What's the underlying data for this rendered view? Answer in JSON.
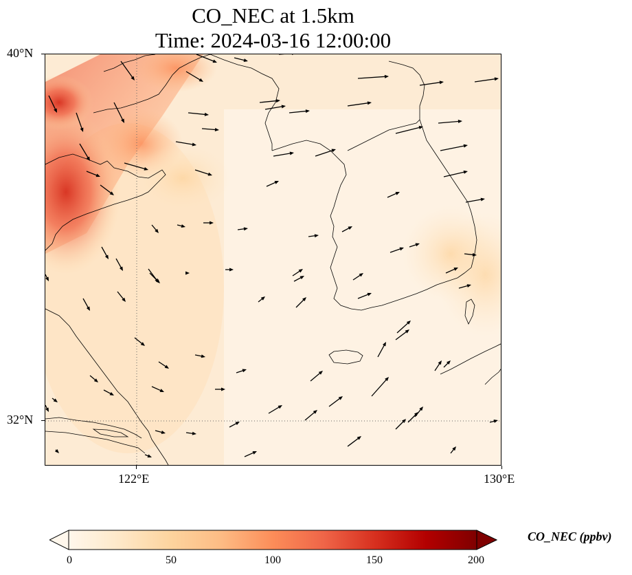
{
  "title": {
    "line1": "CO_NEC at 1.5km",
    "line2": "Time: 2024-03-16 12:00:00"
  },
  "map": {
    "projection": "PlateCarree",
    "lon_range": [
      120,
      130
    ],
    "lat_range": [
      31,
      40
    ],
    "lat_ticks": [
      {
        "value": 40,
        "label": "40°N"
      },
      {
        "value": 32,
        "label": "32°N"
      }
    ],
    "lon_ticks": [
      {
        "value": 122,
        "label": "122°E"
      },
      {
        "value": 130,
        "label": "130°E"
      }
    ],
    "gridlines": "dotted gray at 122°E and 32°N",
    "features": [
      "coastlines",
      "country borders"
    ],
    "field": "CO_NEC concentration (shaded, ppbv)",
    "overlay": "wind vectors (black arrows)"
  },
  "colorbar": {
    "label": "CO_NEC (ppbv)",
    "min": 0,
    "max": 200,
    "extend": "both",
    "colormap": "OrRd",
    "ticks": [
      "0",
      "50",
      "100",
      "150",
      "200"
    ],
    "colors": [
      "#fff7ec",
      "#fee8c8",
      "#fdd49e",
      "#fdbb84",
      "#fc8d59",
      "#ef6548",
      "#d7301f",
      "#b30000",
      "#7f0000"
    ]
  },
  "chart_data": {
    "type": "heatmap",
    "title": "CO_NEC at 1.5km Time: 2024-03-16 12:00:00",
    "xlabel": "",
    "ylabel": "",
    "xlim": [
      120,
      130
    ],
    "ylim": [
      31,
      40
    ],
    "value_range": [
      0,
      200
    ],
    "units": "ppbv",
    "hotspot": {
      "lon": [
        120,
        122
      ],
      "lat": [
        35,
        38.5
      ],
      "max_value": 160
    },
    "background_value": 10
  }
}
